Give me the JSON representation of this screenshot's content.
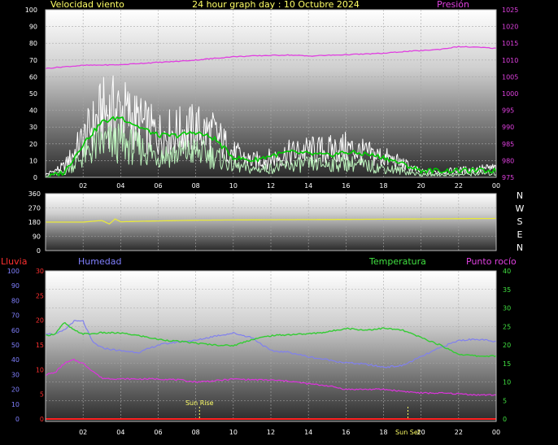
{
  "header": {
    "left_label": "Velocidad viento",
    "center_title": "24 hour graph day : 10 Octubre 2024",
    "right_label": "Presión"
  },
  "wind_dir_panel": {
    "compass_letters": [
      "N",
      "W",
      "S",
      "E",
      "N"
    ]
  },
  "lower_header": {
    "rain_label": "Lluvia",
    "humidity_label": "Humedad",
    "temp_label": "Temperatura",
    "dew_label": "Punto rocío"
  },
  "colors": {
    "wind_gust": "#ffffff",
    "wind_avg": "#bbf2bb",
    "wind_avg10": "#00cc00",
    "pressure": "#e040e0",
    "direction": "#e8e83a",
    "humidity": "#8080ee",
    "temperature": "#33cc33",
    "dew_point": "#dd33dd",
    "rain": "#ff2020",
    "header_yellow": "#ffff66",
    "rain_label": "#ff3030",
    "humidity_label": "#8080ff",
    "temp_label": "#40e040",
    "dew_label": "#e040e0"
  },
  "chart_data": [
    {
      "type": "line",
      "name": "wind_pressure",
      "x_tick_labels": [
        "02",
        "04",
        "06",
        "08",
        "10",
        "12",
        "14",
        "16",
        "18",
        "20",
        "22",
        "00"
      ],
      "y_left": {
        "lim": [
          0,
          100
        ],
        "ticks": [
          "0",
          "10",
          "20",
          "30",
          "40",
          "50",
          "60",
          "70",
          "80",
          "90",
          "100"
        ]
      },
      "y_right": {
        "lim": [
          975,
          1025
        ],
        "ticks": [
          "975",
          "980",
          "985",
          "990",
          "995",
          "1000",
          "1005",
          "1010",
          "1015",
          "1020",
          "1025"
        ]
      },
      "grid": true,
      "series": [
        {
          "key": "wind_gust",
          "axis": "left",
          "x": [
            0,
            1,
            2,
            3,
            4,
            5,
            6,
            7,
            8,
            9,
            10,
            11,
            12,
            13,
            14,
            15,
            16,
            17,
            18,
            19,
            20,
            21,
            22,
            23,
            24
          ],
          "y": [
            2,
            8,
            28,
            48,
            50,
            40,
            32,
            34,
            36,
            32,
            18,
            12,
            14,
            18,
            20,
            20,
            22,
            18,
            15,
            10,
            4,
            4,
            5,
            6,
            7
          ]
        },
        {
          "key": "wind_avg",
          "axis": "left",
          "x": [
            0,
            1,
            2,
            3,
            4,
            5,
            6,
            7,
            8,
            9,
            10,
            11,
            12,
            13,
            14,
            15,
            16,
            17,
            18,
            19,
            20,
            21,
            22,
            23,
            24
          ],
          "y": [
            1,
            4,
            16,
            26,
            26,
            22,
            17,
            18,
            20,
            16,
            9,
            6,
            7,
            9,
            10,
            10,
            11,
            9,
            7,
            5,
            2,
            2,
            2,
            3,
            3
          ]
        },
        {
          "key": "wind_avg10",
          "axis": "left",
          "x": [
            0,
            1,
            2,
            3,
            4,
            5,
            6,
            7,
            8,
            9,
            10,
            11,
            12,
            13,
            14,
            15,
            16,
            17,
            18,
            19,
            20,
            21,
            22,
            23,
            24
          ],
          "y": [
            0,
            3,
            20,
            33,
            36,
            30,
            25,
            25,
            27,
            23,
            12,
            10,
            13,
            15,
            14,
            13,
            15,
            14,
            12,
            8,
            4,
            4,
            4,
            4,
            4
          ]
        },
        {
          "key": "pressure",
          "axis": "right",
          "x": [
            0,
            1,
            2,
            3,
            4,
            5,
            6,
            7,
            8,
            9,
            10,
            11,
            12,
            13,
            14,
            15,
            16,
            17,
            18,
            19,
            20,
            21,
            22,
            23,
            24
          ],
          "y": [
            1007.5,
            1008,
            1008.4,
            1008.5,
            1008.6,
            1009,
            1009.3,
            1009.6,
            1010,
            1010.5,
            1011,
            1011.2,
            1011.4,
            1011.5,
            1011.2,
            1011.4,
            1011.6,
            1011.8,
            1012,
            1012.5,
            1012.8,
            1013.2,
            1014,
            1013.8,
            1013.5
          ]
        }
      ]
    },
    {
      "type": "line",
      "name": "wind_direction",
      "y": {
        "lim": [
          0,
          360
        ],
        "ticks": [
          "0",
          "90",
          "180",
          "270",
          "360"
        ]
      },
      "grid": true,
      "series": [
        {
          "key": "direction",
          "x": [
            0,
            2,
            3,
            3.4,
            3.7,
            4,
            5,
            8,
            12,
            16,
            20,
            24
          ],
          "y": [
            180,
            180,
            190,
            168,
            200,
            182,
            185,
            192,
            195,
            197,
            200,
            203
          ]
        }
      ]
    },
    {
      "type": "line",
      "name": "temp_humidity",
      "x_tick_labels": [
        "02",
        "04",
        "06",
        "08",
        "10",
        "12",
        "14",
        "16",
        "18",
        "20",
        "22",
        "00"
      ],
      "y_left_outer": {
        "lim": [
          0,
          100
        ],
        "ticks": [
          "0",
          "10",
          "20",
          "30",
          "40",
          "50",
          "60",
          "70",
          "80",
          "90",
          "100"
        ]
      },
      "y_left_inner": {
        "lim": [
          0,
          30
        ],
        "ticks": [
          "0",
          "5",
          "10",
          "15",
          "20",
          "25",
          "30"
        ]
      },
      "y_right": {
        "lim": [
          0,
          40
        ],
        "ticks": [
          "0",
          "5",
          "10",
          "15",
          "20",
          "25",
          "30",
          "35",
          "40"
        ]
      },
      "grid": true,
      "annotations": [
        {
          "text": "Sun Rise",
          "x": 8.2
        },
        {
          "text": "Sun Set",
          "x": 19.3
        }
      ],
      "series": [
        {
          "key": "humidity",
          "axis": "left_outer",
          "x": [
            0,
            0.5,
            1,
            1.5,
            2,
            2.5,
            3,
            4,
            5,
            6,
            7,
            8,
            9,
            10,
            11,
            12,
            13,
            14,
            15,
            16,
            17,
            18,
            19,
            20,
            21,
            22,
            23,
            24
          ],
          "y": [
            58,
            57,
            60,
            66,
            66,
            52,
            48,
            46,
            45,
            50,
            52,
            53,
            56,
            58,
            55,
            46,
            45,
            42,
            40,
            38,
            37,
            35,
            36,
            42,
            48,
            53,
            54,
            52
          ]
        },
        {
          "key": "temperature",
          "axis": "right",
          "x": [
            0,
            0.5,
            1,
            1.5,
            2,
            2.5,
            3,
            4,
            5,
            6,
            7,
            8,
            9,
            10,
            11,
            12,
            13,
            14,
            15,
            16,
            17,
            18,
            19,
            20,
            21,
            22,
            23,
            24
          ],
          "y": [
            22.5,
            23,
            26,
            24,
            23,
            23,
            23.3,
            23.2,
            22.5,
            21.5,
            21,
            20.5,
            20,
            19.8,
            21.5,
            22.5,
            22.8,
            23,
            23.5,
            24.5,
            24,
            24.5,
            24,
            22,
            20,
            17.5,
            17,
            17
          ]
        },
        {
          "key": "dew_point",
          "axis": "right",
          "x": [
            0,
            0.5,
            1,
            1.5,
            2,
            2.5,
            3,
            4,
            5,
            6,
            7,
            8,
            9,
            10,
            11,
            12,
            13,
            14,
            15,
            16,
            17,
            18,
            19,
            20,
            21,
            22,
            23,
            24
          ],
          "y": [
            12,
            12.5,
            15,
            16,
            15,
            13,
            11,
            10.8,
            10.8,
            10.8,
            10.6,
            10,
            10.3,
            10.8,
            10.6,
            10.5,
            10.2,
            9.5,
            9,
            8,
            8,
            8,
            7.5,
            7,
            7,
            6.8,
            6.5,
            6.5
          ]
        },
        {
          "key": "rain",
          "axis": "left_inner",
          "x": [
            0,
            24
          ],
          "y": [
            0,
            0
          ]
        }
      ]
    }
  ]
}
